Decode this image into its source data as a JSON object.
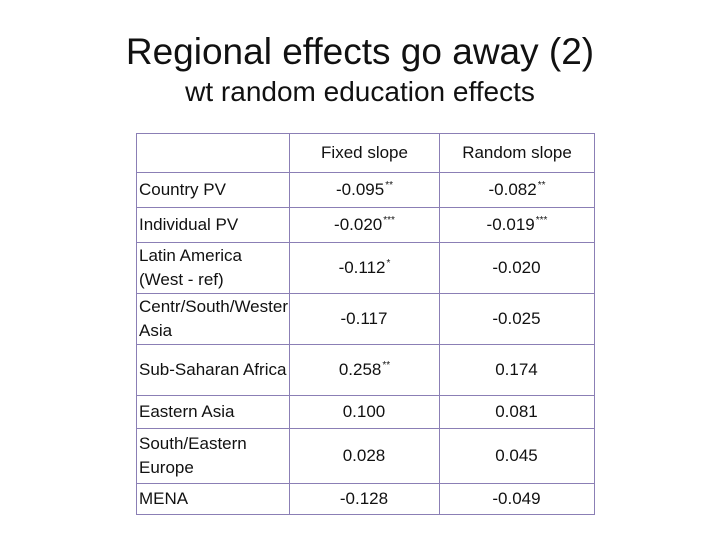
{
  "title": "Regional effects go away (2)",
  "subtitle": "wt random education effects",
  "table": {
    "columns": [
      "",
      "Fixed slope",
      "Random slope"
    ],
    "rows": [
      {
        "label": "Country PV",
        "fixed": "-0.095",
        "fixed_sig": "**",
        "random": "-0.082",
        "random_sig": "**"
      },
      {
        "label": "Individual PV",
        "fixed": "-0.020",
        "fixed_sig": "***",
        "random": "-0.019",
        "random_sig": "***"
      },
      {
        "label": "Latin America (West - ref)",
        "fixed": "-0.112",
        "fixed_sig": "*",
        "random": "-0.020",
        "random_sig": ""
      },
      {
        "label": "Centr/South/Western Asia",
        "fixed": "-0.117",
        "fixed_sig": "",
        "random": "-0.025",
        "random_sig": ""
      },
      {
        "label": "Sub-Saharan Africa",
        "fixed": "0.258",
        "fixed_sig": "**",
        "random": "0.174",
        "random_sig": ""
      },
      {
        "label": "Eastern Asia",
        "fixed": "0.100",
        "fixed_sig": "",
        "random": "0.081",
        "random_sig": ""
      },
      {
        "label": "South/Eastern Europe",
        "fixed": "0.028",
        "fixed_sig": "",
        "random": "0.045",
        "random_sig": ""
      },
      {
        "label": "MENA",
        "fixed": "-0.128",
        "fixed_sig": "",
        "random": "-0.049",
        "random_sig": ""
      }
    ]
  },
  "colors": {
    "border": "#8b7fb5",
    "text": "#111111",
    "background": "#ffffff"
  }
}
